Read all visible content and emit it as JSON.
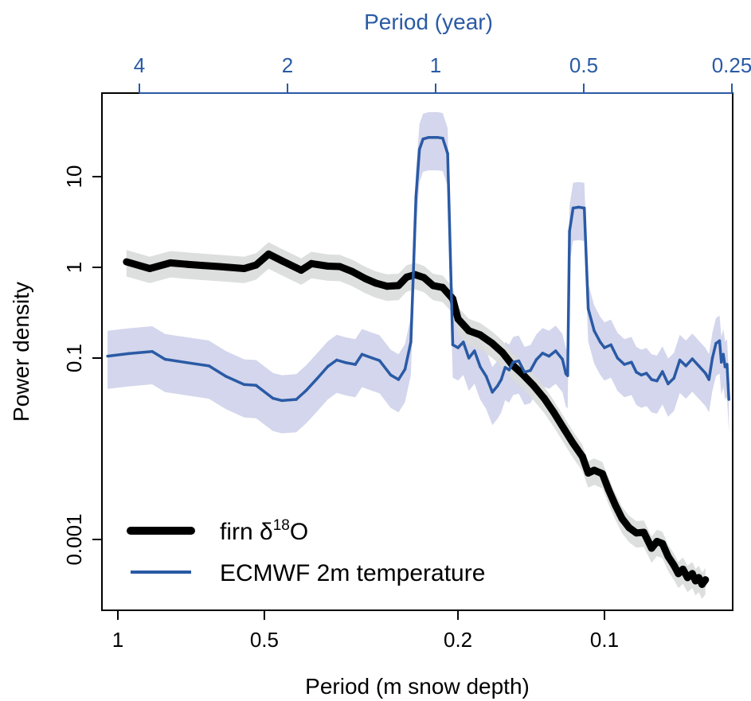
{
  "chart_data": {
    "type": "line",
    "xlabel": "Period (m snow depth)",
    "x_top_label": "Period (year)",
    "ylabel": "Power density",
    "x_scale": "log-reciprocal",
    "y_scale": "log",
    "x_ticks": [
      1,
      0.5,
      0.2,
      0.1
    ],
    "x_tick_labels": [
      "1",
      "0.5",
      "0.2",
      "0.1"
    ],
    "x_top_ticks": [
      4,
      2,
      1,
      0.5,
      0.25
    ],
    "x_top_tick_labels": [
      "4",
      "2",
      "1",
      "0.5",
      "0.25"
    ],
    "y_ticks": [
      10,
      1,
      0.1,
      0.001
    ],
    "y_tick_labels": [
      "10",
      "1",
      "0.1",
      "0.001"
    ],
    "y_range": [
      0.0002,
      60
    ],
    "grid": false,
    "legend_position": "bottom-left",
    "colors": {
      "firn": "#000000",
      "firn_band": "#d9dcdc",
      "ecmwf": "#2a5aa5",
      "ecmwf_band": "#d3d6ec",
      "top_axis": "#2a5aa5"
    },
    "series": [
      {
        "name": "firn δ18O",
        "legend_main": "firn δ",
        "legend_sup": "18",
        "legend_tail": "O",
        "points": [
          [
            0.96,
            1.15
          ],
          [
            0.86,
            0.97
          ],
          [
            0.78,
            1.12
          ],
          [
            0.72,
            1.08
          ],
          [
            0.67,
            1.05
          ],
          [
            0.62,
            1.02
          ],
          [
            0.55,
            0.97
          ],
          [
            0.52,
            1.06
          ],
          [
            0.49,
            1.4
          ],
          [
            0.46,
            1.18
          ],
          [
            0.42,
            0.93
          ],
          [
            0.4,
            1.1
          ],
          [
            0.37,
            1.03
          ],
          [
            0.35,
            1.02
          ],
          [
            0.33,
            0.9
          ],
          [
            0.31,
            0.75
          ],
          [
            0.295,
            0.67
          ],
          [
            0.28,
            0.62
          ],
          [
            0.265,
            0.63
          ],
          [
            0.255,
            0.78
          ],
          [
            0.245,
            0.83
          ],
          [
            0.235,
            0.77
          ],
          [
            0.225,
            0.63
          ],
          [
            0.215,
            0.6
          ],
          [
            0.205,
            0.45
          ],
          [
            0.2,
            0.27
          ],
          [
            0.19,
            0.2
          ],
          [
            0.18,
            0.18
          ],
          [
            0.17,
            0.145
          ],
          [
            0.162,
            0.115
          ],
          [
            0.155,
            0.085
          ],
          [
            0.148,
            0.068
          ],
          [
            0.14,
            0.05
          ],
          [
            0.133,
            0.036
          ],
          [
            0.127,
            0.025
          ],
          [
            0.121,
            0.0165
          ],
          [
            0.116,
            0.0115
          ],
          [
            0.111,
            0.0082
          ],
          [
            0.108,
            0.0054
          ],
          [
            0.105,
            0.0058
          ],
          [
            0.101,
            0.0053
          ],
          [
            0.098,
            0.0035
          ],
          [
            0.095,
            0.0024
          ],
          [
            0.092,
            0.0017
          ],
          [
            0.089,
            0.00135
          ],
          [
            0.086,
            0.00118
          ],
          [
            0.083,
            0.0012
          ],
          [
            0.08,
            0.0008
          ],
          [
            0.078,
            0.00095
          ],
          [
            0.076,
            0.0009
          ],
          [
            0.074,
            0.00065
          ],
          [
            0.072,
            0.00052
          ],
          [
            0.0705,
            0.00042
          ],
          [
            0.069,
            0.00047
          ],
          [
            0.0675,
            0.00038
          ],
          [
            0.066,
            0.00042
          ],
          [
            0.065,
            0.00035
          ],
          [
            0.064,
            0.00038
          ],
          [
            0.063,
            0.00032
          ],
          [
            0.062,
            0.00036
          ]
        ]
      },
      {
        "name": "ECMWF 2m temperature",
        "points": [
          [
            1.05,
            0.105
          ],
          [
            0.95,
            0.112
          ],
          [
            0.85,
            0.118
          ],
          [
            0.8,
            0.097
          ],
          [
            0.72,
            0.089
          ],
          [
            0.65,
            0.082
          ],
          [
            0.6,
            0.063
          ],
          [
            0.55,
            0.051
          ],
          [
            0.52,
            0.05
          ],
          [
            0.48,
            0.036
          ],
          [
            0.46,
            0.034
          ],
          [
            0.43,
            0.035
          ],
          [
            0.41,
            0.044
          ],
          [
            0.39,
            0.059
          ],
          [
            0.37,
            0.081
          ],
          [
            0.355,
            0.095
          ],
          [
            0.34,
            0.089
          ],
          [
            0.325,
            0.085
          ],
          [
            0.315,
            0.11
          ],
          [
            0.3,
            0.1
          ],
          [
            0.29,
            0.094
          ],
          [
            0.275,
            0.065
          ],
          [
            0.265,
            0.058
          ],
          [
            0.257,
            0.075
          ],
          [
            0.25,
            0.15
          ],
          [
            0.247,
            0.9
          ],
          [
            0.244,
            6.0
          ],
          [
            0.24,
            20.0
          ],
          [
            0.236,
            26.0
          ],
          [
            0.23,
            27.0
          ],
          [
            0.22,
            27.0
          ],
          [
            0.215,
            26.5
          ],
          [
            0.21,
            18.0
          ],
          [
            0.207,
            1.0
          ],
          [
            0.205,
            0.14
          ],
          [
            0.2,
            0.13
          ],
          [
            0.195,
            0.15
          ],
          [
            0.19,
            0.1
          ],
          [
            0.185,
            0.12
          ],
          [
            0.18,
            0.08
          ],
          [
            0.175,
            0.063
          ],
          [
            0.17,
            0.042
          ],
          [
            0.166,
            0.049
          ],
          [
            0.163,
            0.058
          ],
          [
            0.16,
            0.079
          ],
          [
            0.157,
            0.074
          ],
          [
            0.154,
            0.09
          ],
          [
            0.15,
            0.093
          ],
          [
            0.146,
            0.07
          ],
          [
            0.142,
            0.073
          ],
          [
            0.138,
            0.096
          ],
          [
            0.134,
            0.113
          ],
          [
            0.13,
            0.105
          ],
          [
            0.126,
            0.12
          ],
          [
            0.122,
            0.097
          ],
          [
            0.12,
            0.067
          ],
          [
            0.119,
            0.064
          ],
          [
            0.118,
            2.5
          ],
          [
            0.116,
            4.5
          ],
          [
            0.113,
            4.6
          ],
          [
            0.11,
            4.5
          ],
          [
            0.108,
            0.35
          ],
          [
            0.105,
            0.2
          ],
          [
            0.102,
            0.15
          ],
          [
            0.1,
            0.13
          ],
          [
            0.097,
            0.14
          ],
          [
            0.094,
            0.1
          ],
          [
            0.091,
            0.085
          ],
          [
            0.088,
            0.09
          ],
          [
            0.086,
            0.07
          ],
          [
            0.084,
            0.065
          ],
          [
            0.082,
            0.068
          ],
          [
            0.08,
            0.058
          ],
          [
            0.078,
            0.056
          ],
          [
            0.076,
            0.071
          ],
          [
            0.074,
            0.052
          ],
          [
            0.072,
            0.06
          ],
          [
            0.07,
            0.095
          ],
          [
            0.068,
            0.082
          ],
          [
            0.066,
            0.098
          ],
          [
            0.064,
            0.082
          ],
          [
            0.062,
            0.068
          ],
          [
            0.061,
            0.058
          ],
          [
            0.06,
            0.1
          ],
          [
            0.059,
            0.145
          ],
          [
            0.058,
            0.155
          ],
          [
            0.0575,
            0.09
          ],
          [
            0.057,
            0.11
          ],
          [
            0.0565,
            0.08
          ],
          [
            0.056,
            0.085
          ],
          [
            0.0555,
            0.035
          ]
        ]
      }
    ]
  }
}
